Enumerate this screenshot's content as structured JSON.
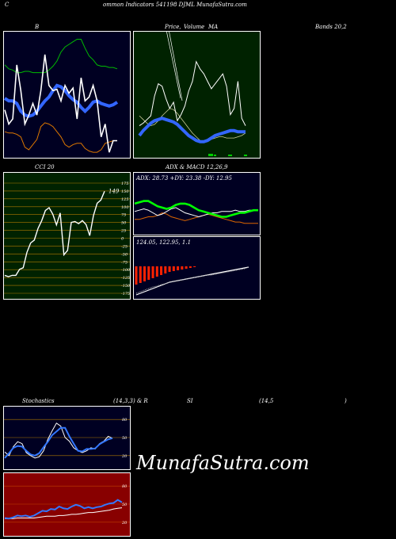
{
  "header": {
    "c": "C",
    "title": "ommon  Indicators 541198 DJML  MunafaSutra.com"
  },
  "labels": {
    "b": "B",
    "price": "Price,",
    "volume": "Volume",
    "ma": "MA",
    "bands": "Bands 20,2",
    "cci": "CCI 20",
    "adx": "ADX  & MACD 12,26,9",
    "stoch": "Stochastics",
    "stoch_params": "(14,3,3) & R",
    "si": "SI",
    "rsi_params": "(14,5",
    "rsi_close": ")"
  },
  "watermark": "MunafaSutra.com",
  "colors": {
    "bands_bg": "#000022",
    "ma_bg": "#002200",
    "rsi_bg": "#880000",
    "gridline_stoch": "#b07a00",
    "price_line": "#ffffff",
    "ma_blue": "#3366ff",
    "upper_band": "#00bb00",
    "lower_band": "#dd7700",
    "rsi_blue": "#3377ff"
  },
  "chart_data": [
    {
      "name": "bollinger",
      "type": "line",
      "series": [
        {
          "values": [
            104,
            103,
            103,
            102,
            100,
            92,
            90,
            94,
            98,
            108,
            111,
            110,
            108,
            104,
            100,
            94,
            92,
            94,
            95,
            95,
            91,
            89,
            88,
            88,
            90,
            95,
            96,
            97,
            97
          ]
        },
        {
          "values": [
            130,
            128,
            128,
            126,
            120,
            117,
            116,
            117,
            120,
            124,
            128,
            131,
            136,
            140,
            139,
            136,
            132,
            129,
            127,
            123,
            120,
            123,
            127,
            128,
            126,
            125,
            124,
            125,
            127
          ]
        },
        {
          "values": [
            156,
            153,
            152,
            150,
            150,
            151,
            151,
            150,
            150,
            150,
            150,
            152,
            155,
            159,
            166,
            170,
            172,
            174,
            176,
            176,
            169,
            163,
            160,
            156,
            155,
            155,
            154,
            154,
            153
          ]
        },
        {
          "values": [
            121,
            110,
            114,
            156,
            136,
            110,
            117,
            126,
            117,
            136,
            164,
            140,
            136,
            137,
            128,
            140,
            134,
            138,
            114,
            146,
            128,
            131,
            140,
            128,
            100,
            110,
            88,
            97,
            97
          ]
        }
      ]
    },
    {
      "name": "price-ma",
      "type": "line",
      "series": [
        {
          "values": [
            118,
            122,
            125,
            128,
            130,
            131,
            132,
            131,
            130,
            129,
            127,
            124,
            121,
            118,
            116,
            114,
            113,
            113,
            114,
            116,
            118,
            119,
            120,
            121,
            122,
            122,
            121,
            121,
            121
          ]
        },
        {
          "values": [
            null,
            null,
            null,
            null,
            null,
            null,
            null,
            null,
            null,
            null,
            null,
            null,
            null,
            null,
            null,
            null,
            null,
            null,
            null,
            null,
            null,
            null,
            null,
            null,
            null,
            null,
            120,
            119,
            119
          ]
        },
        {
          "values": [
            134,
            131,
            128,
            126,
            127,
            130,
            134,
            137,
            140,
            139,
            136,
            132,
            128,
            124,
            120,
            117,
            114,
            113,
            114,
            115,
            116,
            117,
            117,
            116,
            116,
            116,
            117,
            118,
            120
          ]
        },
        {
          "values": [
            126,
            128,
            131,
            134,
            150,
            160,
            158,
            148,
            140,
            145,
            130,
            135,
            142,
            154,
            162,
            178,
            172,
            168,
            162,
            156,
            160,
            164,
            168,
            158,
            135,
            140,
            162,
            132,
            126
          ]
        }
      ]
    },
    {
      "name": "cci",
      "type": "line",
      "ticks": [
        175,
        150,
        125,
        100,
        75,
        50,
        25,
        0,
        -25,
        -50,
        -75,
        -100,
        -125,
        -150,
        -175
      ],
      "ylim": [
        -175,
        175
      ],
      "last_label": "149",
      "values": [
        -118,
        -122,
        -118,
        -118,
        -99,
        -94,
        -45,
        -15,
        -6,
        31,
        56,
        88,
        97,
        76,
        42,
        80,
        -53,
        -39,
        50,
        53,
        46,
        56,
        43,
        8,
        72,
        111,
        121,
        149
      ]
    },
    {
      "name": "adx",
      "type": "line",
      "text": "ADX: 28.73  +DY: 23.38  -DY: 12.95",
      "series": [
        {
          "values": [
            28,
            29,
            30,
            30,
            28,
            26,
            25,
            24,
            25,
            27,
            28,
            28,
            27,
            25,
            23,
            22,
            21,
            20,
            19,
            18,
            18,
            19,
            20,
            21,
            21,
            22,
            23,
            23
          ]
        },
        {
          "values": [
            22,
            23,
            24,
            23,
            21,
            19,
            20,
            22,
            24,
            25,
            23,
            21,
            20,
            19,
            18,
            19,
            20,
            21,
            21,
            22,
            22,
            22,
            23,
            22,
            22,
            23,
            23,
            23
          ]
        },
        {
          "values": [
            16,
            16,
            17,
            18,
            18,
            19,
            21,
            20,
            18,
            17,
            16,
            15,
            16,
            17,
            18,
            19,
            20,
            19,
            18,
            17,
            16,
            15,
            14,
            14,
            13,
            13,
            13,
            13
          ]
        }
      ]
    },
    {
      "name": "macd",
      "type": "bar",
      "text": "124.05,  122.95,  1.1",
      "series": [
        {
          "values": [
            -23,
            -21,
            -19,
            -17,
            -15,
            -13,
            -11,
            -9,
            -7,
            -6,
            -5,
            -4,
            -3,
            -2,
            -1,
            0,
            1,
            2,
            3,
            4,
            5,
            6,
            7,
            8,
            9,
            10,
            11,
            12
          ]
        },
        {
          "values": [
            -21,
            -19,
            -17,
            -15,
            -13,
            -12,
            -10,
            -9,
            -7,
            -6,
            -5,
            -4,
            -3,
            -2,
            -1,
            0,
            1,
            2,
            2,
            3,
            4,
            5,
            6,
            7,
            8,
            9,
            10,
            12
          ]
        },
        {
          "values": [
            7,
            7,
            6,
            6,
            6,
            6,
            5,
            5,
            5,
            5,
            4,
            4,
            4,
            4,
            4,
            4,
            4,
            3,
            3,
            3,
            3,
            3,
            2,
            2,
            2,
            2,
            1,
            1
          ]
        }
      ]
    },
    {
      "name": "stochastics",
      "type": "line",
      "ticks": [
        80,
        50,
        20
      ],
      "series": [
        {
          "values": [
            16,
            24,
            33,
            36,
            35,
            28,
            22,
            20,
            24,
            34,
            43,
            54,
            60,
            66,
            66,
            52,
            40,
            28,
            27,
            31,
            31,
            32,
            39,
            43,
            47,
            49
          ]
        },
        {
          "values": [
            26,
            20,
            35,
            43,
            40,
            25,
            20,
            16,
            18,
            28,
            47,
            61,
            74,
            69,
            50,
            44,
            33,
            28,
            25,
            28,
            33,
            31,
            40,
            44,
            52,
            49
          ]
        }
      ]
    },
    {
      "name": "rsi",
      "type": "line",
      "ticks": [
        80,
        50,
        20
      ],
      "series": [
        {
          "values": [
            27,
            26,
            28,
            31,
            30,
            31,
            29,
            31,
            35,
            39,
            38,
            42,
            41,
            46,
            43,
            42,
            46,
            49,
            47,
            43,
            45,
            43,
            45,
            46,
            49,
            51,
            52,
            57,
            53
          ]
        },
        {
          "values": [
            26,
            26,
            26,
            27,
            27,
            27,
            27,
            27,
            28,
            29,
            30,
            30,
            30,
            31,
            31,
            32,
            33,
            33,
            34,
            35,
            36,
            36,
            37,
            38,
            39,
            40,
            42,
            43,
            44
          ]
        }
      ]
    }
  ]
}
